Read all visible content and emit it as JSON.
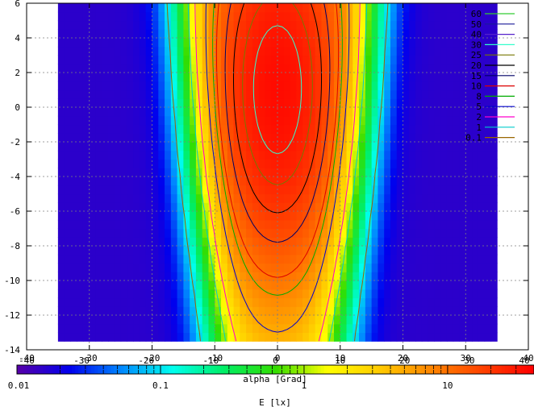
{
  "chart_data": {
    "type": "heatmap",
    "subtype": "filled-contour",
    "x_axis": {
      "range": [
        -40,
        40
      ],
      "ticks": [
        -40,
        -30,
        -20,
        -10,
        0,
        10,
        20,
        30,
        40
      ],
      "tick_labels": [
        "-40",
        "-30",
        "-20",
        "-10",
        "0",
        "10",
        "20",
        "30",
        "40"
      ]
    },
    "y_axis": {
      "range": [
        -14,
        6
      ],
      "ticks": [
        -14,
        -12,
        -10,
        -8,
        -6,
        -4,
        -2,
        0,
        2,
        4,
        6
      ],
      "tick_labels": [
        "-14",
        "-12",
        "-10",
        "-8",
        "-6",
        "-4",
        "-2",
        "0",
        "2",
        "4",
        "6"
      ]
    },
    "grid": true,
    "legend_position": "top-right",
    "contour_levels": [
      {
        "label": "60",
        "color": "#33cc33"
      },
      {
        "label": "50",
        "color": "#1a1a99"
      },
      {
        "label": "40",
        "color": "#5522cc"
      },
      {
        "label": "30",
        "color": "#33ffcc"
      },
      {
        "label": "25",
        "color": "#777700"
      },
      {
        "label": "20",
        "color": "#000000"
      },
      {
        "label": "15",
        "color": "#000066"
      },
      {
        "label": "10",
        "color": "#dd0000"
      },
      {
        "label": "8",
        "color": "#00aa00"
      },
      {
        "label": "5",
        "color": "#0000cc"
      },
      {
        "label": "2",
        "color": "#ff00cc"
      },
      {
        "label": "1",
        "color": "#00cccc"
      },
      {
        "label": "0.1",
        "color": "#996600"
      }
    ],
    "alpha_colorbar": {
      "label": "alpha [Grad]",
      "range": [
        -40,
        40
      ],
      "ticks": [
        -40,
        -30,
        -20,
        -10,
        0,
        10,
        20,
        30,
        40
      ],
      "tick_labels": [
        "-40",
        "-30",
        "-20",
        "-10",
        "0",
        "10",
        "20",
        "30",
        "40"
      ]
    },
    "E_scale": {
      "label": "E [lx]",
      "scale": "log",
      "range": [
        0.01,
        40
      ],
      "ticks": [
        0.01,
        0.1,
        1,
        10
      ],
      "tick_labels": [
        "0.01",
        "0.1",
        "1",
        "10"
      ]
    },
    "colormap": [
      "#5500aa",
      "#0000ee",
      "#0088ff",
      "#00ffee",
      "#00ee66",
      "#33dd00",
      "#ffff00",
      "#ffcc00",
      "#ff8800",
      "#ff4400",
      "#ff0000"
    ],
    "field": {
      "peak_E": 35,
      "x_extent": [
        -35,
        35
      ],
      "y_extent": [
        -13.5,
        6
      ],
      "illuminated_half_width_top": 12,
      "illuminated_half_width_bottom": 7,
      "peak_position": [
        0,
        1
      ],
      "edge_softness": 1.6
    }
  }
}
